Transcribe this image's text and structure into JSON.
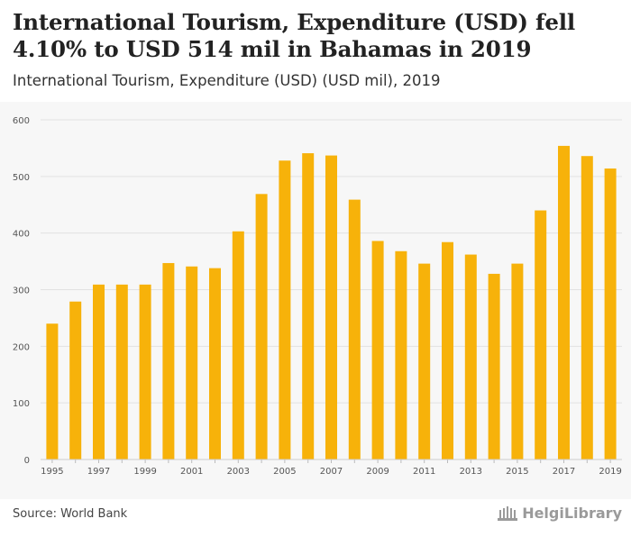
{
  "header": {
    "title": "International Tourism, Expenditure (USD) fell 4.10% to USD 514 mil in Bahamas in 2019",
    "subtitle": "International Tourism, Expenditure (USD) (USD mil), 2019"
  },
  "footer": {
    "source": "Source: World Bank",
    "logo_text": "HelgiLibrary"
  },
  "colors": {
    "bar": "#f7b20a",
    "grid": "#e2e2e2",
    "axis_text": "#555555"
  },
  "chart_data": {
    "type": "bar",
    "title": "International Tourism, Expenditure (USD) (USD mil)",
    "xlabel": "",
    "ylabel": "",
    "ylim": [
      0,
      600
    ],
    "yticks": [
      0,
      100,
      200,
      300,
      400,
      500,
      600
    ],
    "grid": true,
    "categories": [
      "1995",
      "1996",
      "1997",
      "1998",
      "1999",
      "2000",
      "2001",
      "2002",
      "2003",
      "2004",
      "2005",
      "2006",
      "2007",
      "2008",
      "2009",
      "2010",
      "2011",
      "2012",
      "2013",
      "2014",
      "2015",
      "2016",
      "2017",
      "2018",
      "2019"
    ],
    "tick_labels": [
      "1995",
      "",
      "1997",
      "",
      "1999",
      "",
      "2001",
      "",
      "2003",
      "",
      "2005",
      "",
      "2007",
      "",
      "2009",
      "",
      "2011",
      "",
      "2013",
      "",
      "2015",
      "",
      "2017",
      "",
      "2019"
    ],
    "values": [
      240,
      279,
      309,
      309,
      309,
      347,
      341,
      338,
      403,
      469,
      528,
      541,
      537,
      459,
      386,
      368,
      346,
      384,
      362,
      328,
      346,
      440,
      554,
      536,
      514
    ]
  }
}
